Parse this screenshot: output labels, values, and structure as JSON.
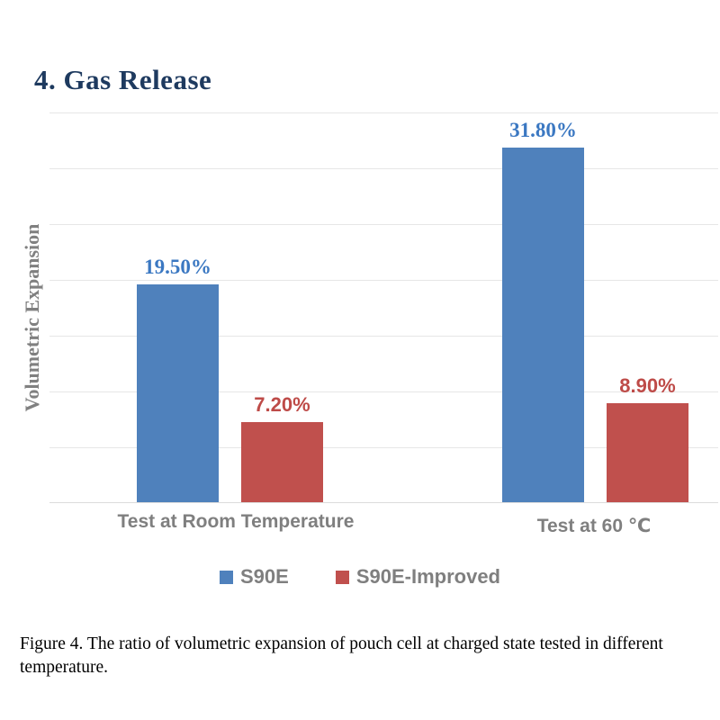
{
  "page": {
    "title": "4. Gas Release",
    "caption": "Figure 4. The ratio of volumetric expansion of pouch cell at charged state tested in different temperature."
  },
  "chart_data": {
    "type": "bar",
    "title": "",
    "xlabel": "",
    "ylabel": "Volumetric Expansion",
    "categories": [
      "Test at Room Temperature",
      "Test at 60 ℃"
    ],
    "series": [
      {
        "name": "S90E",
        "color": "#4f81bc",
        "label_color": "#3b78c2",
        "values": [
          19.5,
          31.8
        ],
        "labels": [
          "19.50%",
          "31.80%"
        ]
      },
      {
        "name": "S90E-Improved",
        "color": "#c0504d",
        "label_color": "#be4b48",
        "values": [
          7.2,
          8.9
        ],
        "labels": [
          "7.20%",
          "8.90%"
        ]
      }
    ],
    "ylim": [
      0,
      35
    ],
    "grid": true,
    "gridline_step": 5,
    "legend_position": "bottom",
    "value_label_format": "percent"
  }
}
